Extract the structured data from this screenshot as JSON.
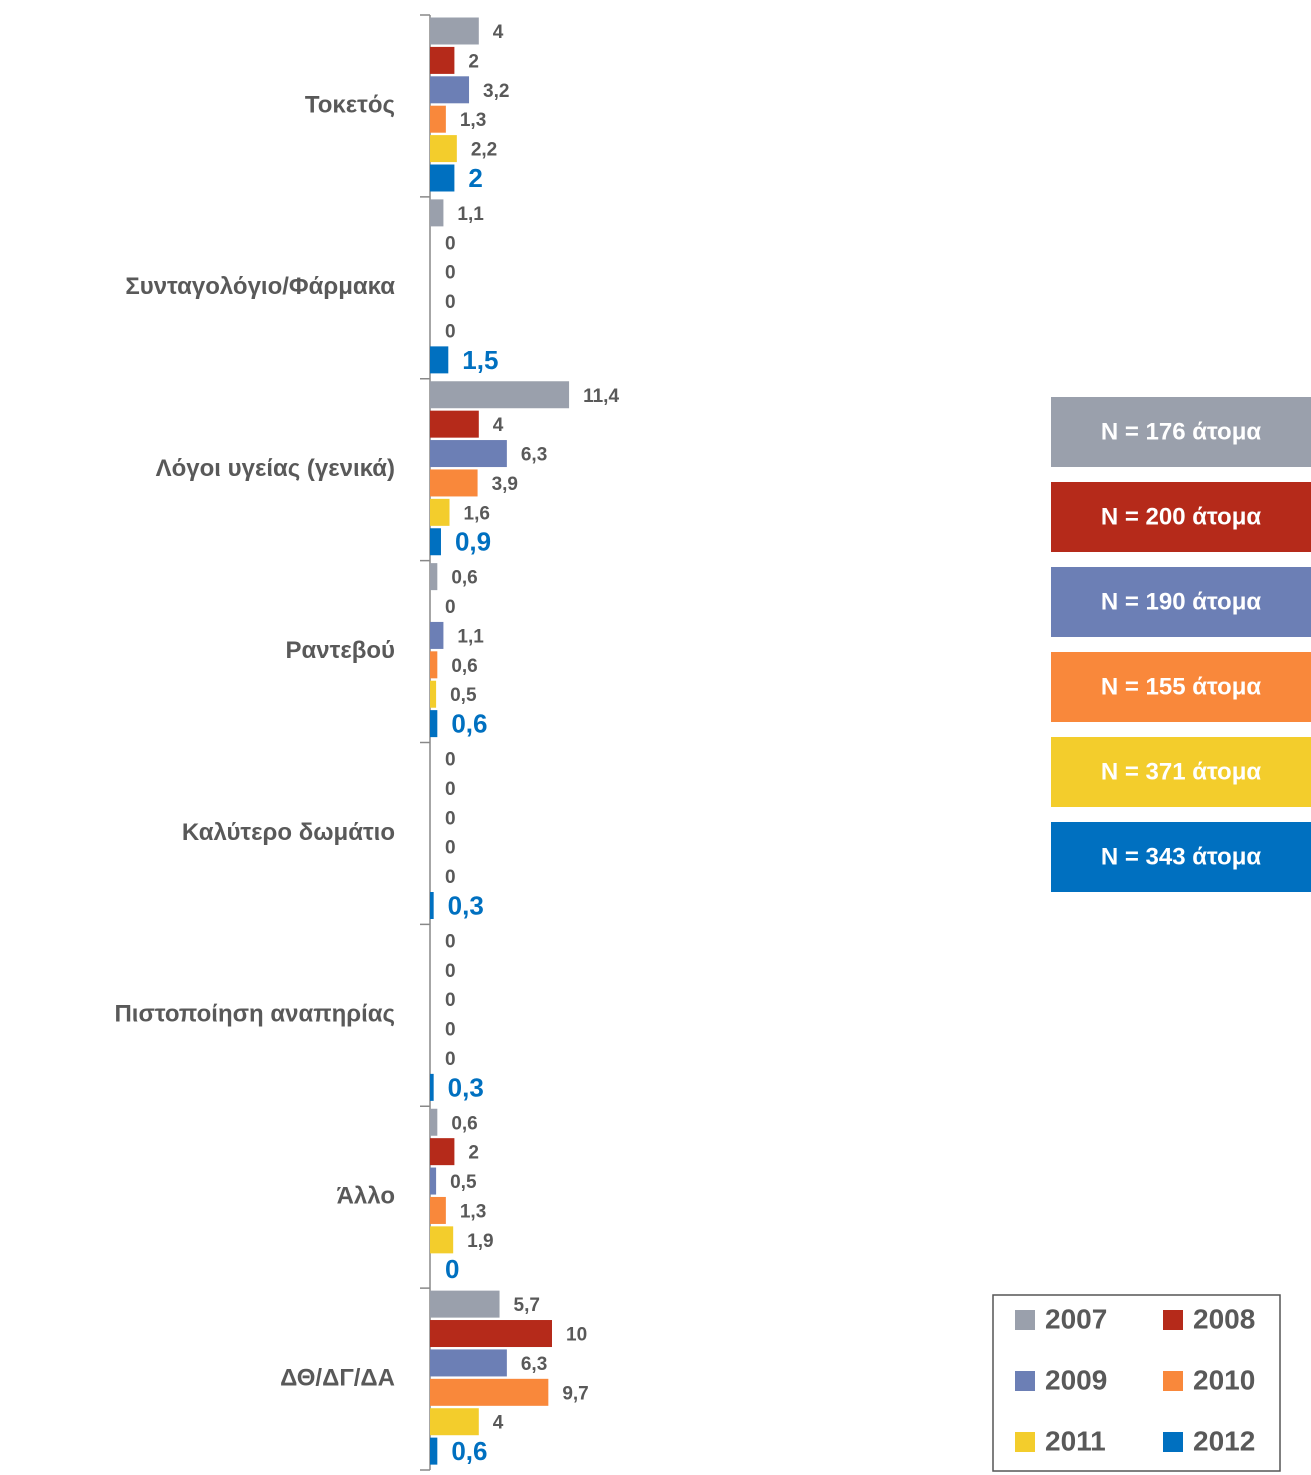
{
  "chart_data": {
    "type": "hbar",
    "categories": [
      "Τοκετός",
      "Συνταγολόγιο/Φάρμακα",
      "Λόγοι υγείας (γενικά)",
      "Ραντεβού",
      "Καλύτερο δωμάτιο",
      "Πιστοποίηση αναπηρίας",
      "Άλλο",
      "ΔΘ/ΔΓ/ΔΑ"
    ],
    "series": [
      {
        "name": "2007",
        "color": "#9aa0ac",
        "values": [
          4,
          1.1,
          11.4,
          0.6,
          0,
          0,
          0.6,
          5.7
        ],
        "value_labels": [
          "4",
          "1,1",
          "11,4",
          "0,6",
          "0",
          "0",
          "0,6",
          "5,7"
        ]
      },
      {
        "name": "2008",
        "color": "#b52a1a",
        "values": [
          2,
          0,
          4,
          0,
          0,
          0,
          2,
          10
        ],
        "value_labels": [
          "2",
          "0",
          "4",
          "0",
          "0",
          "0",
          "2",
          "10"
        ]
      },
      {
        "name": "2009",
        "color": "#6c7fb5",
        "values": [
          3.2,
          0,
          6.3,
          1.1,
          0,
          0,
          0.5,
          6.3
        ],
        "value_labels": [
          "3,2",
          "0",
          "6,3",
          "1,1",
          "0",
          "0",
          "0,5",
          "6,3"
        ]
      },
      {
        "name": "2010",
        "color": "#f9883b",
        "values": [
          1.3,
          0,
          3.9,
          0.6,
          0,
          0,
          1.3,
          9.7
        ],
        "value_labels": [
          "1,3",
          "0",
          "3,9",
          "0,6",
          "0",
          "0",
          "1,3",
          "9,7"
        ]
      },
      {
        "name": "2011",
        "color": "#f3cd2c",
        "values": [
          2.2,
          0,
          1.6,
          0.5,
          0,
          0,
          1.9,
          4
        ],
        "value_labels": [
          "2,2",
          "0",
          "1,6",
          "0,5",
          "0",
          "0",
          "1,9",
          "4"
        ]
      },
      {
        "name": "2012",
        "color": "#0070c0",
        "values": [
          2,
          1.5,
          0.9,
          0.6,
          0.3,
          0.3,
          0,
          0.6
        ],
        "value_labels": [
          "2",
          "1,5",
          "0,9",
          "0,6",
          "0,3",
          "0,3",
          "0",
          "0,6"
        ]
      }
    ],
    "annotations": [
      "N = 176 άτομα",
      "N = 200 άτομα",
      "N = 190 άτομα",
      "N = 155 άτομα",
      "N = 371 άτομα",
      "N = 343 άτομα"
    ]
  }
}
